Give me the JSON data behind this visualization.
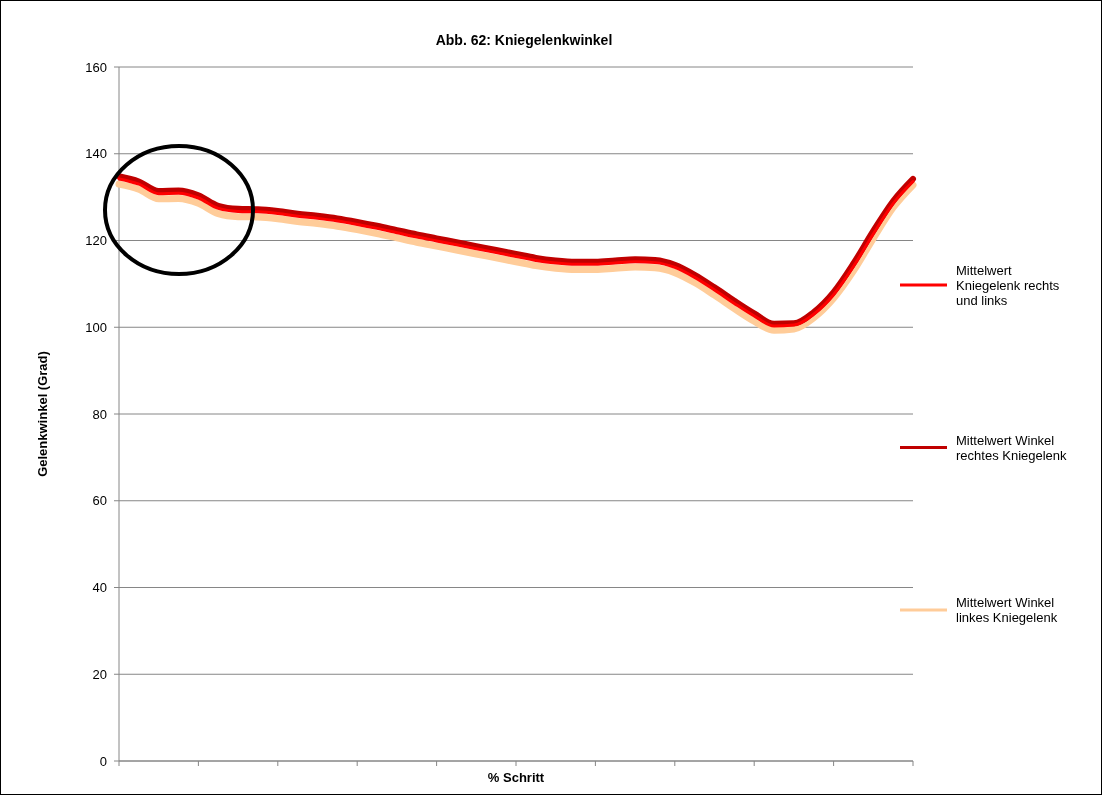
{
  "chart_data": {
    "type": "line",
    "title": "Abb. 62: Kniegelenkwinkel",
    "xlabel": "% Schritt",
    "ylabel": "Gelenkwinkel (Grad)",
    "categories": [
      null,
      null,
      null,
      null,
      null,
      null,
      null,
      null,
      null,
      null,
      null,
      null,
      null,
      null,
      null,
      null,
      null,
      null,
      null,
      null,
      null,
      null,
      null,
      null,
      null,
      null,
      null,
      null,
      null,
      null,
      null,
      null,
      null,
      null,
      null,
      null,
      null,
      null,
      null,
      null,
      null
    ],
    "series": [
      {
        "name": "Mittelwert Kniegelenk rechts und links",
        "color": "#ff0000",
        "values": [
          134.2,
          133.0,
          130.8,
          130.9,
          129.8,
          127.4,
          126.7,
          126.6,
          126.2,
          125.6,
          125.1,
          124.5,
          123.7,
          122.8,
          121.8,
          120.8,
          119.9,
          119.0,
          118.1,
          117.2,
          116.3,
          115.4,
          114.8,
          114.5,
          114.5,
          114.8,
          115.1,
          114.9,
          113.8,
          111.5,
          108.6,
          105.5,
          102.6,
          100.3,
          100.5,
          103.0,
          107.5,
          114.0,
          121.5,
          128.5,
          133.6
        ]
      },
      {
        "name": "Mittelwert Winkel rechtes Kniegelenk",
        "color": "#c00000",
        "values": [
          134.8,
          133.6,
          131.4,
          131.5,
          130.4,
          128.0,
          127.3,
          127.2,
          126.8,
          126.2,
          125.7,
          125.1,
          124.3,
          123.4,
          122.4,
          121.4,
          120.5,
          119.6,
          118.7,
          117.8,
          116.9,
          116.0,
          115.4,
          115.1,
          115.1,
          115.4,
          115.7,
          115.5,
          114.4,
          112.1,
          109.2,
          106.1,
          103.2,
          100.8,
          100.9,
          103.5,
          108.1,
          114.7,
          122.2,
          129.1,
          134.2
        ]
      },
      {
        "name": "Mittelwert Winkel linkes Kniegelenk",
        "color": "#ffcc99",
        "values": [
          133.0,
          131.8,
          129.6,
          129.7,
          128.6,
          126.2,
          125.5,
          125.4,
          125.0,
          124.4,
          123.9,
          123.3,
          122.5,
          121.6,
          120.6,
          119.6,
          118.7,
          117.8,
          116.9,
          116.0,
          115.1,
          114.2,
          113.6,
          113.3,
          113.3,
          113.6,
          113.9,
          113.7,
          112.6,
          110.3,
          107.4,
          104.3,
          101.4,
          99.3,
          99.6,
          102.2,
          106.7,
          113.0,
          120.5,
          127.6,
          132.8
        ]
      }
    ],
    "ylim": [
      0,
      160
    ],
    "yticks": [
      0,
      20,
      40,
      60,
      80,
      100,
      120,
      140,
      160
    ],
    "grid": "y",
    "legend": "right",
    "marker": "none",
    "line_style": "solid",
    "tick_labels": "y"
  }
}
